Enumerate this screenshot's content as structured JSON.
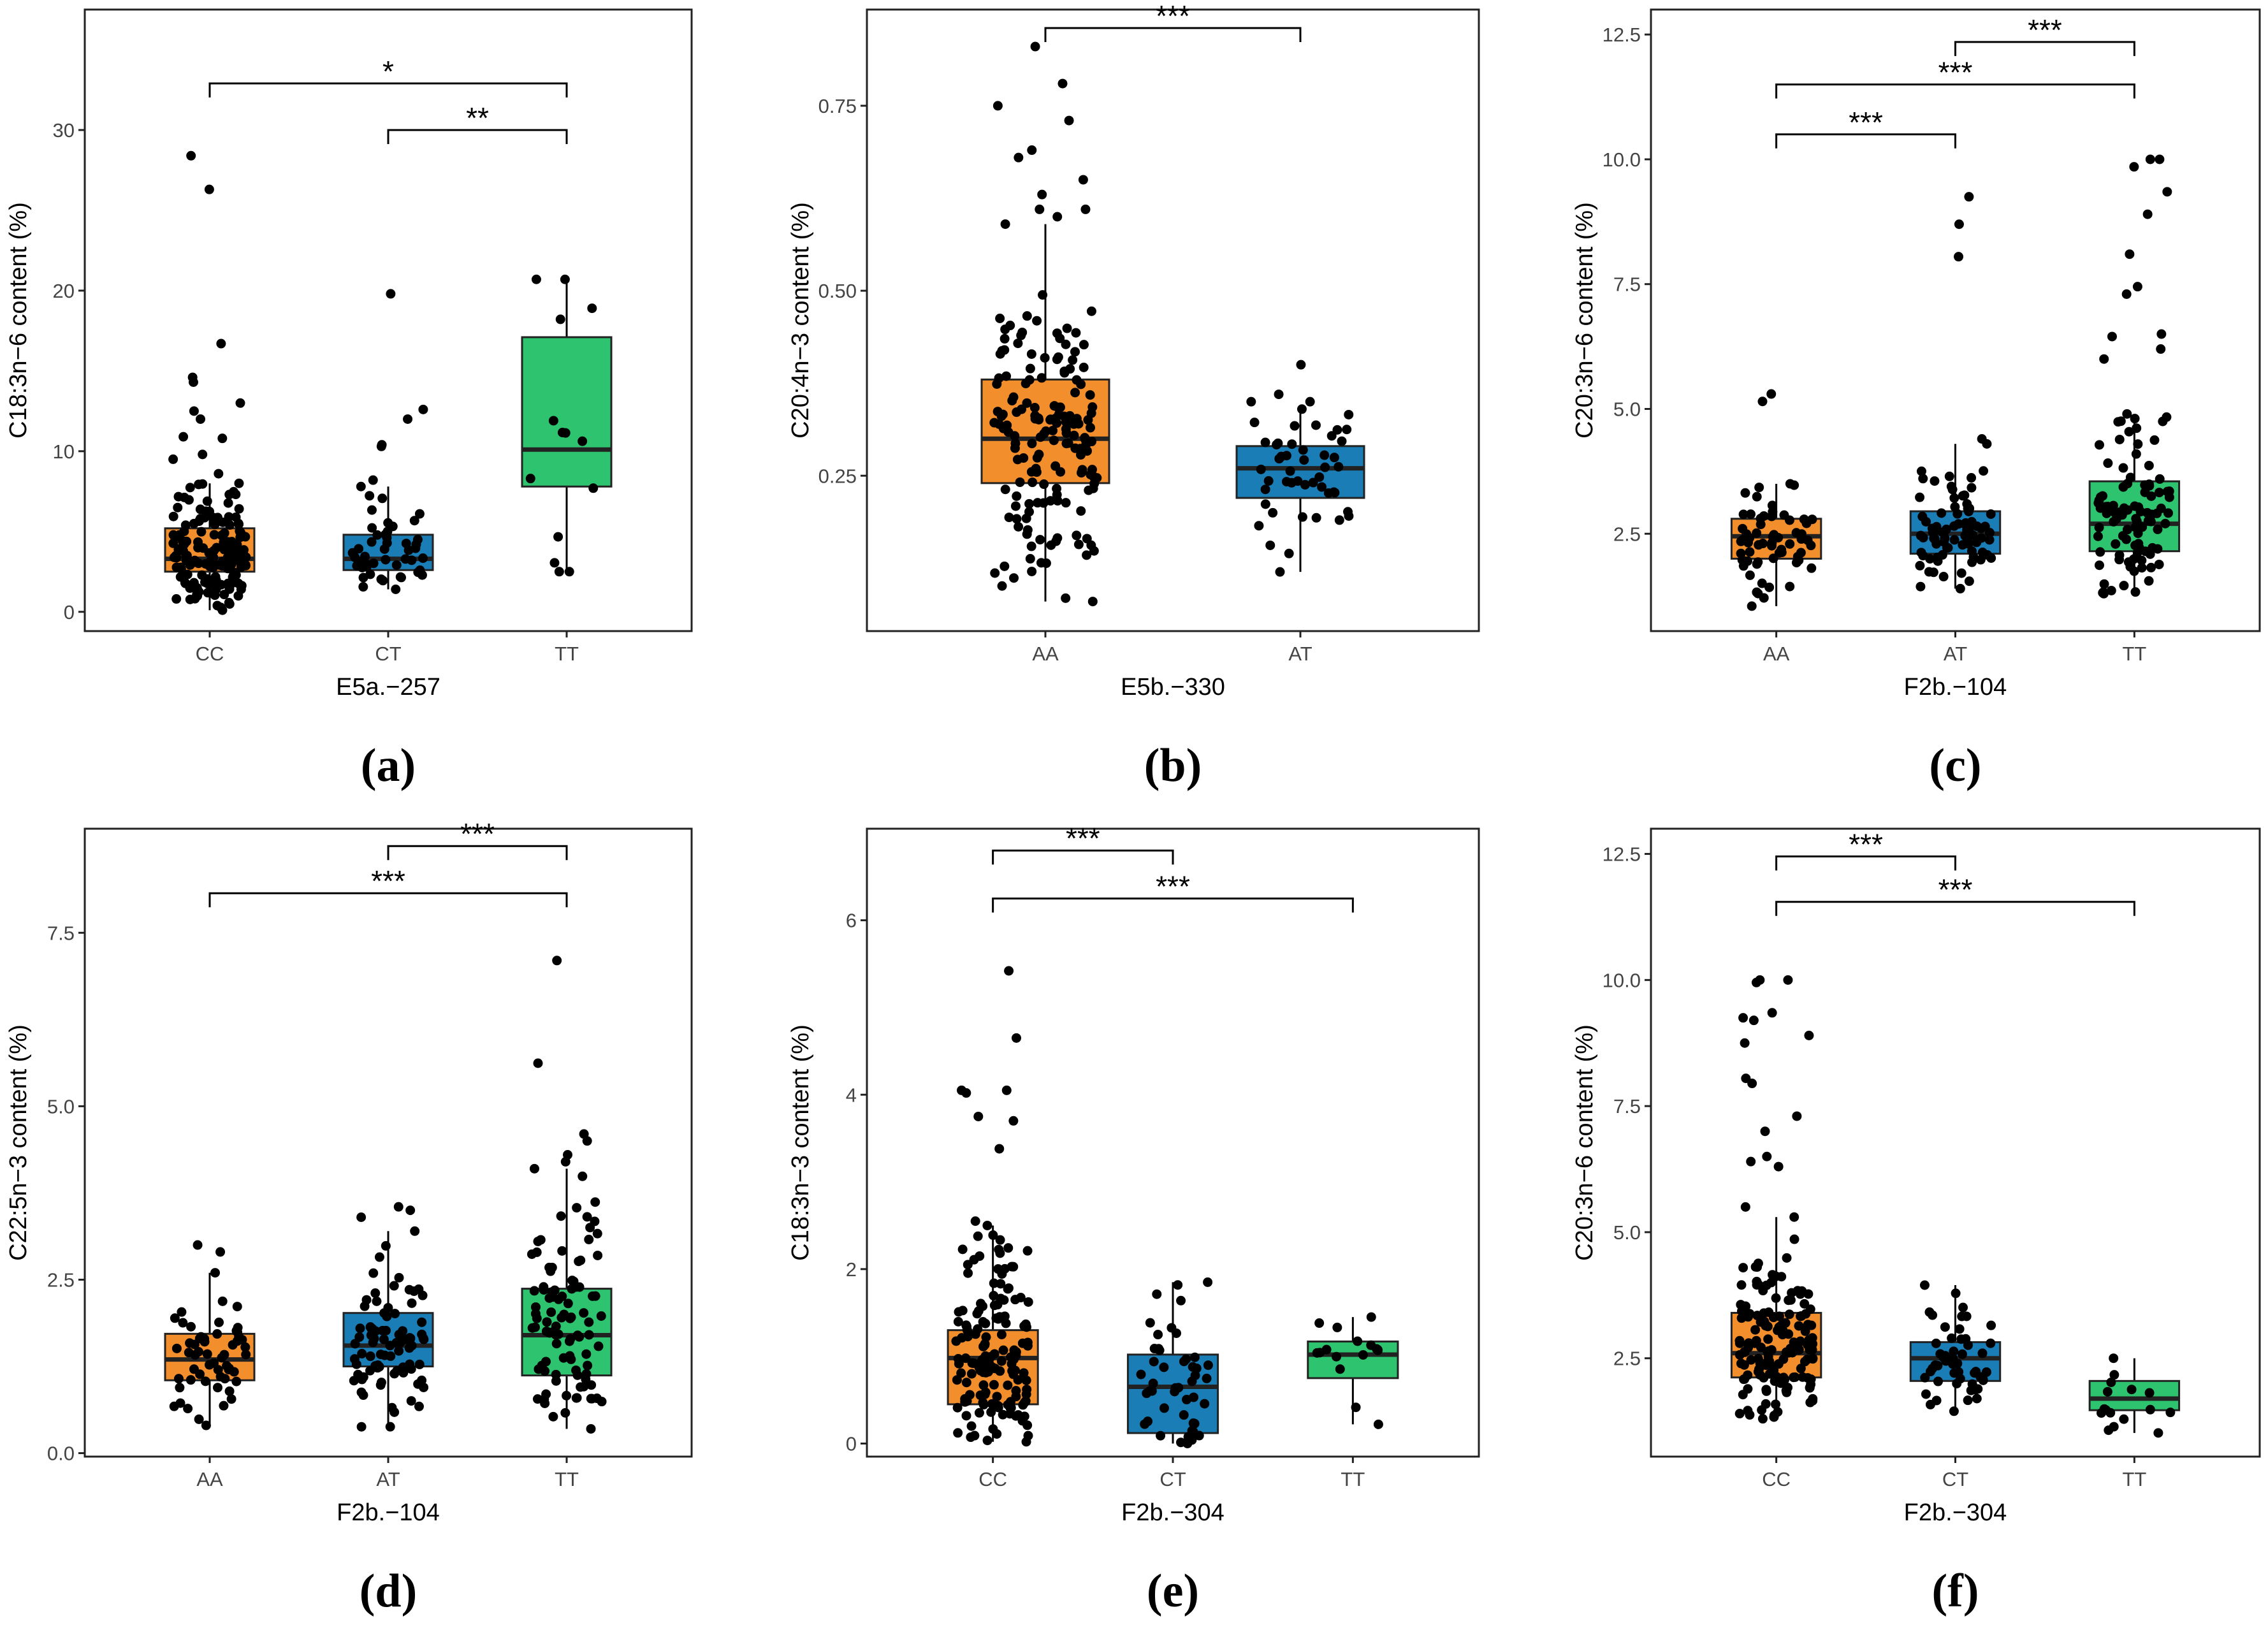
{
  "figure": {
    "colors": {
      "orange": "#F28E2B",
      "blue": "#1A7DB6",
      "green": "#2EC36F",
      "frame": "#222222",
      "point": "#000000"
    }
  },
  "chart_data": [
    {
      "type": "box",
      "panel_label": "(a)",
      "xlabel": "E5a.−257",
      "ylabel": "C18:3n−6 content (%)",
      "ylim": [
        -1.2,
        37.5
      ],
      "yticks": [
        0,
        10,
        20,
        30
      ],
      "ytick_labels": [
        "0",
        "10",
        "20",
        "30"
      ],
      "categories": [
        "CC",
        "CT",
        "TT"
      ],
      "colors": [
        "#F28E2B",
        "#1A7DB6",
        "#2EC36F"
      ],
      "boxes": [
        {
          "q1": 2.5,
          "median": 3.3,
          "q3": 5.2,
          "whisker_low": 0.1,
          "whisker_high": 8.0,
          "n": 150
        },
        {
          "q1": 2.6,
          "median": 3.3,
          "q3": 4.8,
          "whisker_low": 1.4,
          "whisker_high": 7.8,
          "n": 45
        },
        {
          "q1": 7.8,
          "median": 10.1,
          "q3": 17.1,
          "whisker_low": 2.5,
          "whisker_high": 20.7,
          "n": 6
        }
      ],
      "outliers": [
        [
          28.4,
          26.3,
          16.7,
          14.6,
          14.3,
          13.0,
          12.5,
          12.0,
          10.9,
          10.8,
          9.8,
          9.5,
          8.6
        ],
        [
          19.8,
          12.6,
          12.0,
          10.4,
          10.3,
          8.2
        ],
        [
          20.7,
          18.9,
          11.9,
          8.3,
          7.7,
          2.5
        ]
      ],
      "significance": [
        {
          "from": 0,
          "to": 2,
          "y": 32.9,
          "label": "*"
        },
        {
          "from": 1,
          "to": 2,
          "y": 30.0,
          "label": "**"
        }
      ]
    },
    {
      "type": "box",
      "panel_label": "(b)",
      "xlabel": "E5b.−330",
      "ylabel": "C20:4n−3 content (%)",
      "ylim": [
        0.04,
        0.88
      ],
      "yticks": [
        0.25,
        0.5,
        0.75
      ],
      "ytick_labels": [
        "0.25",
        "0.50",
        "0.75"
      ],
      "categories": [
        "AA",
        "AT"
      ],
      "colors": [
        "#F28E2B",
        "#1A7DB6"
      ],
      "boxes": [
        {
          "q1": 0.24,
          "median": 0.3,
          "q3": 0.38,
          "whisker_low": 0.08,
          "whisker_high": 0.59,
          "n": 160
        },
        {
          "q1": 0.22,
          "median": 0.26,
          "q3": 0.29,
          "whisker_low": 0.12,
          "whisker_high": 0.34,
          "n": 45
        }
      ],
      "outliers": [
        [
          0.83,
          0.78,
          0.75,
          0.73,
          0.69,
          0.68,
          0.65,
          0.63,
          0.61,
          0.61,
          0.6
        ],
        [
          0.4,
          0.36,
          0.35,
          0.35
        ]
      ],
      "significance": [
        {
          "from": 0,
          "to": 1,
          "y": 0.855,
          "label": "***"
        }
      ]
    },
    {
      "type": "box",
      "panel_label": "(c)",
      "xlabel": "F2b.−104",
      "ylabel": "C20:3n−6 content (%)",
      "ylim": [
        0.55,
        13.0
      ],
      "yticks": [
        2.5,
        5.0,
        7.5,
        10.0,
        12.5
      ],
      "ytick_labels": [
        "2.5",
        "5.0",
        "7.5",
        "10.0",
        "12.5"
      ],
      "categories": [
        "AA",
        "AT",
        "TT"
      ],
      "colors": [
        "#F28E2B",
        "#1A7DB6",
        "#2EC36F"
      ],
      "boxes": [
        {
          "q1": 2.0,
          "median": 2.45,
          "q3": 2.8,
          "whisker_low": 1.05,
          "whisker_high": 3.5,
          "n": 60
        },
        {
          "q1": 2.1,
          "median": 2.5,
          "q3": 2.95,
          "whisker_low": 1.4,
          "whisker_high": 4.3,
          "n": 80
        },
        {
          "q1": 2.15,
          "median": 2.7,
          "q3": 3.55,
          "whisker_low": 1.3,
          "whisker_high": 4.9,
          "n": 95
        }
      ],
      "outliers": [
        [
          5.3,
          5.15
        ],
        [
          9.25,
          8.7,
          8.05,
          4.4
        ],
        [
          10.0,
          10.0,
          9.85,
          9.35,
          8.9,
          8.1,
          7.45,
          7.3,
          6.5,
          6.45,
          6.2,
          6.0,
          4.75
        ]
      ],
      "significance": [
        {
          "from": 1,
          "to": 2,
          "y": 12.35,
          "label": "***"
        },
        {
          "from": 0,
          "to": 2,
          "y": 11.5,
          "label": "***"
        },
        {
          "from": 0,
          "to": 1,
          "y": 10.5,
          "label": "***"
        }
      ]
    },
    {
      "type": "box",
      "panel_label": "(d)",
      "xlabel": "F2b.−104",
      "ylabel": "C22:5n−3 content (%)",
      "ylim": [
        -0.05,
        9.0
      ],
      "yticks": [
        0.0,
        2.5,
        5.0,
        7.5
      ],
      "ytick_labels": [
        "0.0",
        "2.5",
        "5.0",
        "7.5"
      ],
      "categories": [
        "AA",
        "AT",
        "TT"
      ],
      "colors": [
        "#F28E2B",
        "#1A7DB6",
        "#2EC36F"
      ],
      "boxes": [
        {
          "q1": 1.05,
          "median": 1.35,
          "q3": 1.72,
          "whisker_low": 0.4,
          "whisker_high": 2.6,
          "n": 55
        },
        {
          "q1": 1.25,
          "median": 1.55,
          "q3": 2.02,
          "whisker_low": 0.38,
          "whisker_high": 3.2,
          "n": 85
        },
        {
          "q1": 1.12,
          "median": 1.7,
          "q3": 2.37,
          "whisker_low": 0.35,
          "whisker_high": 4.1,
          "n": 95
        }
      ],
      "outliers": [
        [
          3.0,
          2.9
        ],
        [
          3.55,
          3.5,
          3.4
        ],
        [
          7.1,
          5.62,
          4.6,
          4.5,
          4.3,
          4.2
        ]
      ],
      "significance": [
        {
          "from": 1,
          "to": 2,
          "y": 8.75,
          "label": "***"
        },
        {
          "from": 0,
          "to": 2,
          "y": 8.07,
          "label": "***"
        }
      ]
    },
    {
      "type": "box",
      "panel_label": "(e)",
      "xlabel": "F2b.−304",
      "ylabel": "C18:3n−3 content (%)",
      "ylim": [
        -0.15,
        7.05
      ],
      "yticks": [
        0,
        2,
        4,
        6
      ],
      "ytick_labels": [
        "0",
        "2",
        "4",
        "6"
      ],
      "categories": [
        "CC",
        "CT",
        "TT"
      ],
      "colors": [
        "#F28E2B",
        "#1A7DB6",
        "#2EC36F"
      ],
      "boxes": [
        {
          "q1": 0.45,
          "median": 0.98,
          "q3": 1.3,
          "whisker_low": 0.02,
          "whisker_high": 2.5,
          "n": 150
        },
        {
          "q1": 0.12,
          "median": 0.65,
          "q3": 1.02,
          "whisker_low": 0.0,
          "whisker_high": 1.85,
          "n": 45
        },
        {
          "q1": 0.75,
          "median": 1.02,
          "q3": 1.17,
          "whisker_low": 0.22,
          "whisker_high": 1.45,
          "n": 14
        }
      ],
      "outliers": [
        [
          5.42,
          4.65,
          4.05,
          4.05,
          4.02,
          3.75,
          3.7,
          3.38,
          2.55
        ],
        [],
        []
      ],
      "significance": [
        {
          "from": 0,
          "to": 1,
          "y": 6.8,
          "label": "***"
        },
        {
          "from": 0,
          "to": 2,
          "y": 6.25,
          "label": "***"
        }
      ]
    },
    {
      "type": "box",
      "panel_label": "(f)",
      "xlabel": "F2b.−304",
      "ylabel": "C20:3n−6 content (%)",
      "ylim": [
        0.55,
        13.0
      ],
      "yticks": [
        2.5,
        5.0,
        7.5,
        10.0,
        12.5
      ],
      "ytick_labels": [
        "2.5",
        "5.0",
        "7.5",
        "10.0",
        "12.5"
      ],
      "categories": [
        "CC",
        "CT",
        "TT"
      ],
      "colors": [
        "#F28E2B",
        "#1A7DB6",
        "#2EC36F"
      ],
      "boxes": [
        {
          "q1": 2.12,
          "median": 2.6,
          "q3": 3.4,
          "whisker_low": 1.3,
          "whisker_high": 5.3,
          "n": 150
        },
        {
          "q1": 2.05,
          "median": 2.5,
          "q3": 2.82,
          "whisker_low": 1.45,
          "whisker_high": 3.95,
          "n": 50
        },
        {
          "q1": 1.47,
          "median": 1.7,
          "q3": 2.05,
          "whisker_low": 1.02,
          "whisker_high": 2.5,
          "n": 14
        }
      ],
      "outliers": [
        [
          10.0,
          10.0,
          9.95,
          9.35,
          9.25,
          9.2,
          8.9,
          8.75,
          8.05,
          7.95,
          7.3,
          7.0,
          6.5,
          6.4,
          6.3,
          5.5
        ],
        [],
        []
      ],
      "significance": [
        {
          "from": 0,
          "to": 1,
          "y": 12.45,
          "label": "***"
        },
        {
          "from": 0,
          "to": 2,
          "y": 11.55,
          "label": "***"
        }
      ]
    }
  ]
}
